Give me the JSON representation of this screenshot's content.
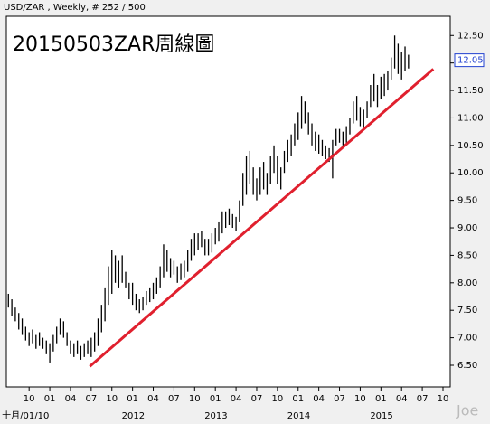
{
  "chart_data": {
    "type": "hilo",
    "header": "USD/ZAR , Weekly, # 252 / 500",
    "title": "20150503ZAR周線圖",
    "watermark": "Joe",
    "color": "#000000",
    "x": [
      -3,
      -2.5,
      -2,
      -1.5,
      -1,
      -0.5,
      0,
      0.5,
      1,
      1.5,
      2,
      2.5,
      3,
      3.5,
      4,
      4.5,
      5,
      5.5,
      6,
      6.5,
      7,
      7.5,
      8,
      8.5,
      9,
      9.5,
      10,
      10.5,
      11,
      11.5,
      12,
      12.5,
      13,
      13.5,
      14,
      14.5,
      15,
      15.5,
      16,
      16.5,
      17,
      17.5,
      18,
      18.5,
      19,
      19.5,
      20,
      20.5,
      21,
      21.5,
      22,
      22.5,
      23,
      23.5,
      24,
      24.5,
      25,
      25.5,
      26,
      26.5,
      27,
      27.5,
      28,
      28.5,
      29,
      29.5,
      30,
      30.5,
      31,
      31.5,
      32,
      32.5,
      33,
      33.5,
      34,
      34.5,
      35,
      35.5,
      36,
      36.5,
      37,
      37.5,
      38,
      38.5,
      39,
      39.5,
      40,
      40.5,
      41,
      41.5,
      42,
      42.5,
      43,
      43.5,
      44,
      44.5,
      45,
      45.5,
      46,
      46.5,
      47,
      47.5,
      48,
      48.5,
      49,
      49.5,
      50,
      50.5,
      51,
      51.5,
      52,
      52.5,
      53,
      53.5,
      54,
      54.5,
      55
    ],
    "low": [
      7.55,
      7.4,
      7.3,
      7.15,
      7.05,
      6.95,
      6.85,
      6.9,
      6.8,
      6.85,
      6.8,
      6.7,
      6.55,
      6.75,
      6.9,
      7.05,
      7.0,
      6.85,
      6.7,
      6.65,
      6.7,
      6.6,
      6.65,
      6.7,
      6.65,
      6.75,
      6.85,
      7.1,
      7.3,
      7.6,
      7.8,
      8.0,
      7.9,
      8.0,
      7.9,
      7.7,
      7.6,
      7.5,
      7.45,
      7.5,
      7.6,
      7.65,
      7.7,
      7.8,
      7.9,
      8.1,
      8.2,
      8.1,
      8.15,
      8.0,
      8.05,
      8.1,
      8.2,
      8.4,
      8.5,
      8.6,
      8.65,
      8.5,
      8.5,
      8.55,
      8.7,
      8.75,
      8.9,
      9.0,
      9.05,
      9.0,
      8.95,
      9.1,
      9.4,
      9.6,
      9.8,
      9.6,
      9.5,
      9.6,
      9.7,
      9.6,
      9.8,
      10.0,
      9.8,
      9.7,
      10.0,
      10.2,
      10.3,
      10.5,
      10.6,
      10.8,
      10.9,
      10.7,
      10.5,
      10.4,
      10.35,
      10.3,
      10.25,
      10.2,
      9.9,
      10.5,
      10.55,
      10.5,
      10.55,
      10.7,
      10.9,
      10.95,
      10.85,
      10.8,
      11.0,
      11.2,
      11.3,
      11.2,
      11.35,
      11.4,
      11.5,
      11.7,
      11.9,
      11.8,
      11.7,
      11.85,
      11.9
    ],
    "high": [
      7.8,
      7.7,
      7.55,
      7.45,
      7.35,
      7.2,
      7.1,
      7.15,
      7.05,
      7.1,
      7.0,
      6.95,
      6.9,
      7.05,
      7.2,
      7.35,
      7.3,
      7.1,
      6.95,
      6.9,
      6.95,
      6.85,
      6.9,
      6.95,
      7.0,
      7.1,
      7.35,
      7.6,
      7.9,
      8.3,
      8.6,
      8.5,
      8.4,
      8.5,
      8.2,
      8.0,
      8.0,
      7.8,
      7.7,
      7.75,
      7.85,
      7.9,
      8.0,
      8.1,
      8.3,
      8.7,
      8.6,
      8.45,
      8.4,
      8.3,
      8.35,
      8.4,
      8.6,
      8.8,
      8.9,
      8.9,
      8.95,
      8.8,
      8.8,
      8.9,
      9.0,
      9.1,
      9.3,
      9.3,
      9.35,
      9.25,
      9.2,
      9.5,
      10.0,
      10.3,
      10.4,
      10.1,
      9.9,
      10.1,
      10.2,
      10.0,
      10.3,
      10.5,
      10.3,
      10.1,
      10.4,
      10.6,
      10.7,
      10.9,
      11.1,
      11.4,
      11.3,
      11.1,
      10.9,
      10.75,
      10.7,
      10.6,
      10.5,
      10.45,
      10.6,
      10.8,
      10.8,
      10.75,
      10.85,
      11.0,
      11.3,
      11.4,
      11.2,
      11.15,
      11.3,
      11.6,
      11.8,
      11.6,
      11.75,
      11.8,
      11.85,
      12.1,
      12.5,
      12.35,
      12.2,
      12.3,
      12.15
    ],
    "trendline": {
      "x": [
        8.8,
        58.6
      ],
      "y": [
        6.48,
        11.89
      ],
      "color": "#e0202e"
    },
    "last_price": {
      "value": 12.05,
      "label": "12.05"
    },
    "xlim": [
      -3.3,
      61.05
    ],
    "ylim": [
      6.105,
      12.85
    ],
    "xticks": [
      {
        "value": 0,
        "label": "10"
      },
      {
        "value": 3,
        "label": "01"
      },
      {
        "value": 6,
        "label": "04"
      },
      {
        "value": 9,
        "label": "07"
      },
      {
        "value": 12,
        "label": "10"
      },
      {
        "value": 15,
        "label": "01"
      },
      {
        "value": 18,
        "label": "04"
      },
      {
        "value": 21,
        "label": "07"
      },
      {
        "value": 24,
        "label": "10"
      },
      {
        "value": 27,
        "label": "01"
      },
      {
        "value": 30,
        "label": "04"
      },
      {
        "value": 33,
        "label": "07"
      },
      {
        "value": 36,
        "label": "10"
      },
      {
        "value": 39,
        "label": "01"
      },
      {
        "value": 42,
        "label": "04"
      },
      {
        "value": 45,
        "label": "07"
      },
      {
        "value": 48,
        "label": "10"
      },
      {
        "value": 51,
        "label": "01"
      },
      {
        "value": 54,
        "label": "04"
      },
      {
        "value": 57,
        "label": "07"
      },
      {
        "value": 60,
        "label": "10"
      }
    ],
    "x_period_labels": [
      {
        "value": 0,
        "label": "十月/01/10"
      },
      {
        "value": 15,
        "label": "2012"
      },
      {
        "value": 27,
        "label": "2013"
      },
      {
        "value": 39,
        "label": "2014"
      },
      {
        "value": 51,
        "label": "2015"
      }
    ],
    "yticks": [
      {
        "value": 6.5,
        "label": "6.50"
      },
      {
        "value": 7,
        "label": "7.00"
      },
      {
        "value": 7.5,
        "label": "7.50"
      },
      {
        "value": 8,
        "label": "8.00"
      },
      {
        "value": 8.5,
        "label": "8.50"
      },
      {
        "value": 9,
        "label": "9.00"
      },
      {
        "value": 9.5,
        "label": "9.50"
      },
      {
        "value": 10,
        "label": "10.00"
      },
      {
        "value": 10.5,
        "label": "10.50"
      },
      {
        "value": 11,
        "label": "11.00"
      },
      {
        "value": 11.5,
        "label": "11.50"
      },
      {
        "value": 12,
        "label": "12.00"
      },
      {
        "value": 12.5,
        "label": "12.50"
      }
    ]
  }
}
